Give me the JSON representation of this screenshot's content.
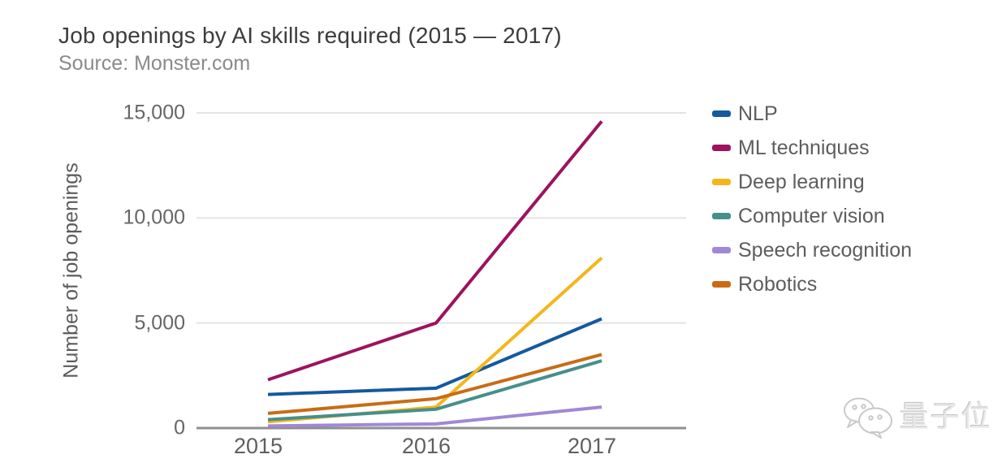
{
  "header": {
    "title": "Job openings by AI skills required (2015 — 2017)",
    "subtitle": "Source: Monster.com"
  },
  "chart_data": {
    "type": "line",
    "title": "Job openings by AI skills required (2015 — 2017)",
    "source": "Source: Monster.com",
    "xlabel": "",
    "ylabel": "Number of job openings",
    "categories": [
      "2015",
      "2016",
      "2017"
    ],
    "series": [
      {
        "name": "NLP",
        "color": "#15599e",
        "values": [
          1600,
          1900,
          5200
        ]
      },
      {
        "name": "ML techniques",
        "color": "#9c135e",
        "values": [
          2300,
          5000,
          14600
        ]
      },
      {
        "name": "Deep learning",
        "color": "#f3b71b",
        "values": [
          300,
          1000,
          8100
        ]
      },
      {
        "name": "Computer vision",
        "color": "#468f8c",
        "values": [
          400,
          900,
          3200
        ]
      },
      {
        "name": "Speech recognition",
        "color": "#a188d6",
        "values": [
          100,
          200,
          1000
        ]
      },
      {
        "name": "Robotics",
        "color": "#c96c15",
        "values": [
          700,
          1400,
          3500
        ]
      }
    ],
    "ylim": [
      0,
      15000
    ],
    "yticks": [
      0,
      5000,
      10000,
      15000
    ],
    "ytick_labels": [
      "0",
      "5,000",
      "10,000",
      "15,000"
    ],
    "grid": true,
    "legend_position": "right"
  },
  "watermark": {
    "text": "量子位",
    "icon": "wechat-icon"
  }
}
